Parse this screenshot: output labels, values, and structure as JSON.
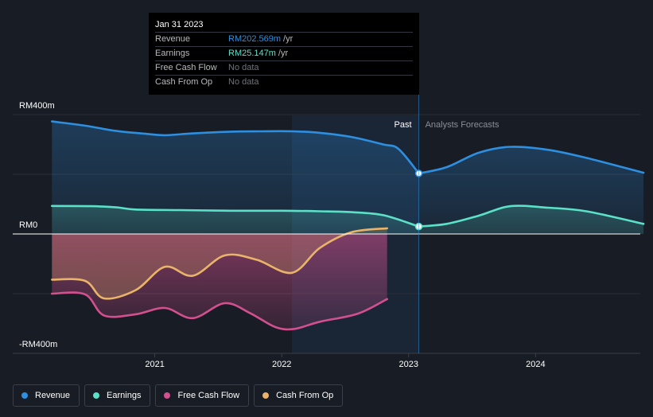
{
  "tooltip": {
    "date": "Jan 31 2023",
    "rows": [
      {
        "label": "Revenue",
        "value": "RM202.569m",
        "unit": "/yr",
        "color": "#2e8fe0"
      },
      {
        "label": "Earnings",
        "value": "RM25.147m",
        "unit": "/yr",
        "color": "#5ce1c9"
      },
      {
        "label": "Free Cash Flow",
        "value": "No data",
        "unit": "",
        "color": "#6f737a"
      },
      {
        "label": "Cash From Op",
        "value": "No data",
        "unit": "",
        "color": "#6f737a"
      }
    ]
  },
  "legend": [
    {
      "label": "Revenue",
      "color": "#2e8fe0"
    },
    {
      "label": "Earnings",
      "color": "#5ce1c9"
    },
    {
      "label": "Free Cash Flow",
      "color": "#d2508f"
    },
    {
      "label": "Cash From Op",
      "color": "#e9b46a"
    }
  ],
  "chart_data": {
    "type": "line",
    "title": "",
    "y_unit": "RM m",
    "ylim": [
      -400,
      400
    ],
    "y_tick_labels": [
      {
        "value": 400,
        "label": "RM400m"
      },
      {
        "value": 0,
        "label": "RM0"
      },
      {
        "value": -400,
        "label": "-RM400m"
      }
    ],
    "xlim": [
      2020.0,
      2024.85
    ],
    "x_tick_labels": [
      {
        "value": 2021,
        "label": "2021"
      },
      {
        "value": 2022,
        "label": "2022"
      },
      {
        "value": 2023,
        "label": "2023"
      },
      {
        "value": 2024,
        "label": "2024"
      }
    ],
    "past_label": "Past",
    "forecast_label": "Analysts Forecasts",
    "divider_x": 2023.08,
    "shade_start_x": 2022.08,
    "series": [
      {
        "name": "Revenue",
        "color": "#2e8fe0",
        "points": [
          [
            2020.19,
            377
          ],
          [
            2020.45,
            363
          ],
          [
            2020.7,
            345
          ],
          [
            2020.95,
            335
          ],
          [
            2021.08,
            331
          ],
          [
            2021.3,
            337
          ],
          [
            2021.6,
            343
          ],
          [
            2021.85,
            344
          ],
          [
            2022.08,
            344
          ],
          [
            2022.3,
            339
          ],
          [
            2022.55,
            325
          ],
          [
            2022.8,
            300
          ],
          [
            2022.92,
            285
          ],
          [
            2023.08,
            203
          ]
        ],
        "highlight": [
          2023.08,
          203
        ]
      },
      {
        "name": "Revenue forecast",
        "color": "#2e8fe0",
        "points": [
          [
            2023.08,
            203
          ],
          [
            2023.3,
            224
          ],
          [
            2023.55,
            272
          ],
          [
            2023.8,
            292
          ],
          [
            2024.1,
            282
          ],
          [
            2024.4,
            255
          ],
          [
            2024.85,
            205
          ]
        ]
      },
      {
        "name": "Earnings",
        "color": "#5ce1c9",
        "points": [
          [
            2020.19,
            94
          ],
          [
            2020.5,
            93
          ],
          [
            2020.7,
            89
          ],
          [
            2020.85,
            82
          ],
          [
            2021.2,
            80
          ],
          [
            2021.6,
            78
          ],
          [
            2022.0,
            78
          ],
          [
            2022.3,
            76
          ],
          [
            2022.55,
            73
          ],
          [
            2022.8,
            63
          ],
          [
            2023.08,
            25
          ]
        ],
        "highlight": [
          2023.08,
          25
        ]
      },
      {
        "name": "Earnings forecast",
        "color": "#5ce1c9",
        "points": [
          [
            2023.08,
            25
          ],
          [
            2023.3,
            34
          ],
          [
            2023.55,
            61
          ],
          [
            2023.8,
            93
          ],
          [
            2024.1,
            88
          ],
          [
            2024.4,
            76
          ],
          [
            2024.85,
            34
          ]
        ]
      },
      {
        "name": "Free Cash Flow",
        "color": "#d2508f",
        "points": [
          [
            2020.19,
            -200
          ],
          [
            2020.45,
            -202
          ],
          [
            2020.6,
            -273
          ],
          [
            2020.85,
            -269
          ],
          [
            2021.08,
            -248
          ],
          [
            2021.3,
            -282
          ],
          [
            2021.55,
            -232
          ],
          [
            2021.75,
            -265
          ],
          [
            2021.95,
            -312
          ],
          [
            2022.1,
            -318
          ],
          [
            2022.3,
            -294
          ],
          [
            2022.6,
            -267
          ],
          [
            2022.83,
            -218
          ]
        ]
      },
      {
        "name": "Cash From Op",
        "color": "#e9b46a",
        "points": [
          [
            2020.19,
            -153
          ],
          [
            2020.45,
            -157
          ],
          [
            2020.6,
            -216
          ],
          [
            2020.85,
            -188
          ],
          [
            2021.08,
            -110
          ],
          [
            2021.3,
            -140
          ],
          [
            2021.55,
            -72
          ],
          [
            2021.8,
            -86
          ],
          [
            2022.08,
            -130
          ],
          [
            2022.3,
            -47
          ],
          [
            2022.55,
            6
          ],
          [
            2022.83,
            19
          ]
        ]
      }
    ]
  }
}
